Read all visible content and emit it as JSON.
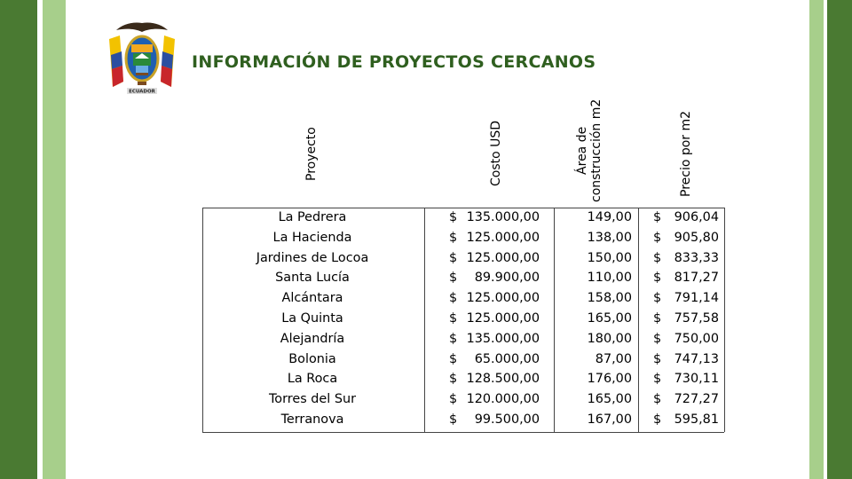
{
  "slide": {
    "title": "INFORMACIÓN DE PROYECTOS CERCANOS",
    "logo": {
      "icon": "ecuador-coat-of-arms-icon",
      "caption": "ECUADOR"
    },
    "colors": {
      "dark_green": "#4a7a32",
      "light_green": "#a7cf8b",
      "title": "#2f5f1f"
    }
  },
  "table": {
    "headers": {
      "project": "Proyecto",
      "cost": "Costo USD",
      "area_line1": "Área de",
      "area_line2": "construcción m2",
      "price": "Precio por m2"
    },
    "currency_symbol": "$",
    "rows": [
      {
        "project": "La Pedrera",
        "cost": "135.000,00",
        "area": "149,00",
        "price": "906,04"
      },
      {
        "project": "La Hacienda",
        "cost": "125.000,00",
        "area": "138,00",
        "price": "905,80"
      },
      {
        "project": "Jardines de Locoa",
        "cost": "125.000,00",
        "area": "150,00",
        "price": "833,33"
      },
      {
        "project": "Santa Lucía",
        "cost": "89.900,00",
        "area": "110,00",
        "price": "817,27"
      },
      {
        "project": "Alcántara",
        "cost": "125.000,00",
        "area": "158,00",
        "price": "791,14"
      },
      {
        "project": "La Quinta",
        "cost": "125.000,00",
        "area": "165,00",
        "price": "757,58"
      },
      {
        "project": "Alejandría",
        "cost": "135.000,00",
        "area": "180,00",
        "price": "750,00"
      },
      {
        "project": "Bolonia",
        "cost": "65.000,00",
        "area": "87,00",
        "price": "747,13"
      },
      {
        "project": "La Roca",
        "cost": "128.500,00",
        "area": "176,00",
        "price": "730,11"
      },
      {
        "project": "Torres del Sur",
        "cost": "120.000,00",
        "area": "165,00",
        "price": "727,27"
      },
      {
        "project": "Terranova",
        "cost": "99.500,00",
        "area": "167,00",
        "price": "595,81"
      }
    ]
  }
}
